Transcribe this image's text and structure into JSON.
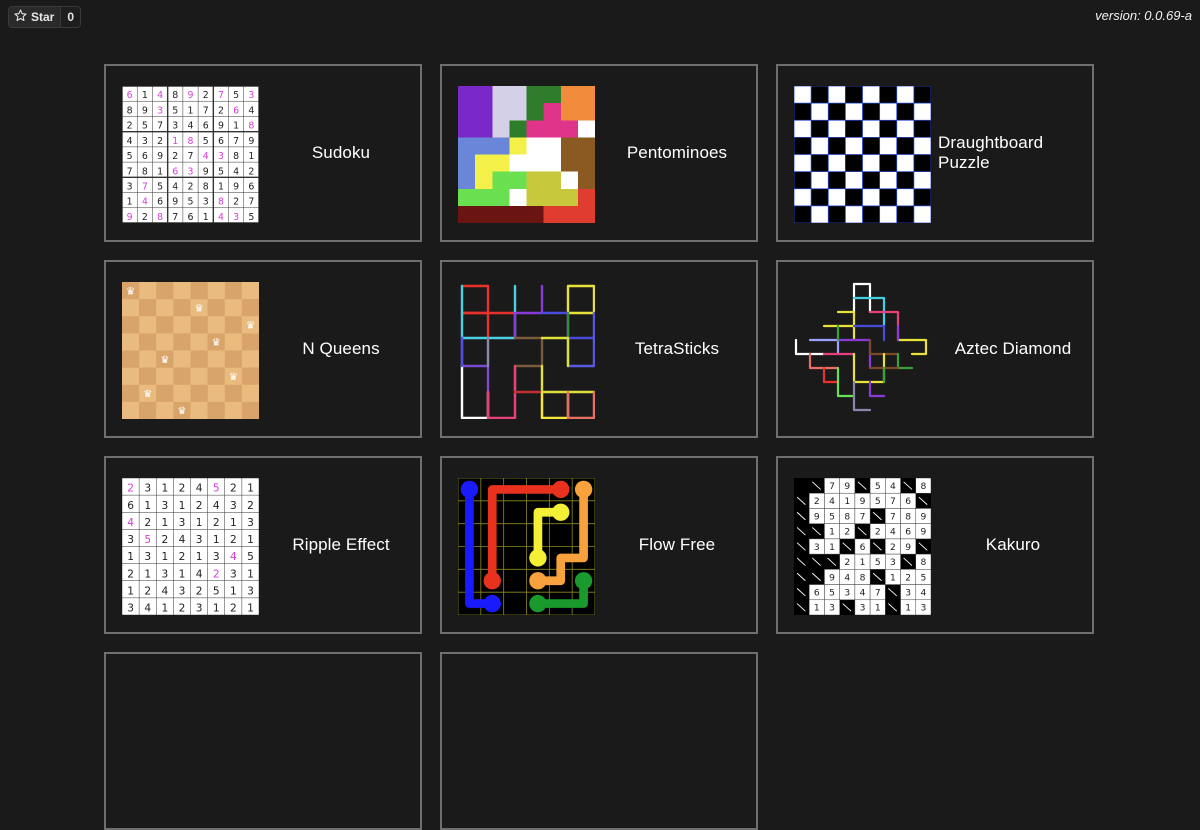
{
  "header": {
    "star_label": "Star",
    "star_count": "0",
    "version": "version: 0.0.69-a"
  },
  "puzzles": [
    {
      "name": "Sudoku"
    },
    {
      "name": "Pentominoes"
    },
    {
      "name": "Draughtboard Puzzle"
    },
    {
      "name": "N Queens"
    },
    {
      "name": "TetraSticks"
    },
    {
      "name": "Aztec Diamond"
    },
    {
      "name": "Ripple Effect"
    },
    {
      "name": "Flow Free"
    },
    {
      "name": "Kakuro"
    }
  ],
  "sudoku": {
    "rows": [
      "614892753",
      "893517264",
      "257346918",
      "432185679",
      "569274381",
      "781639542",
      "375428196",
      "146953827",
      "928761435"
    ],
    "givens_mask": [
      "101010101",
      "001000010",
      "000000001",
      "000110000",
      "000001100",
      "000110000",
      "010000000",
      "010000100",
      "101000110"
    ]
  },
  "ripple": {
    "rows": [
      "23124521",
      "61312432",
      "42131213",
      "35243121",
      "13121345",
      "21314231",
      "12432513",
      "34123121"
    ],
    "givens_mask": [
      "10000100",
      "00000000",
      "10000000",
      "01000000",
      "00000010",
      "00000100",
      "00000000",
      "00000000"
    ]
  },
  "kakuro": {
    "rows": [
      "  79 54 8",
      " 2419576 ",
      " 9587 789",
      "  12 2469",
      " 31 6 29 ",
      "   2153 8",
      "  948 125",
      " 65347 34",
      " 13 31 13"
    ]
  },
  "colors": {
    "accent_pink": "#d63ed8",
    "flow_blue": "#1a1aff",
    "flow_red": "#e8321e",
    "flow_yellow": "#f4f035",
    "flow_orange": "#f7a23c",
    "flow_green": "#1a9a2c"
  }
}
